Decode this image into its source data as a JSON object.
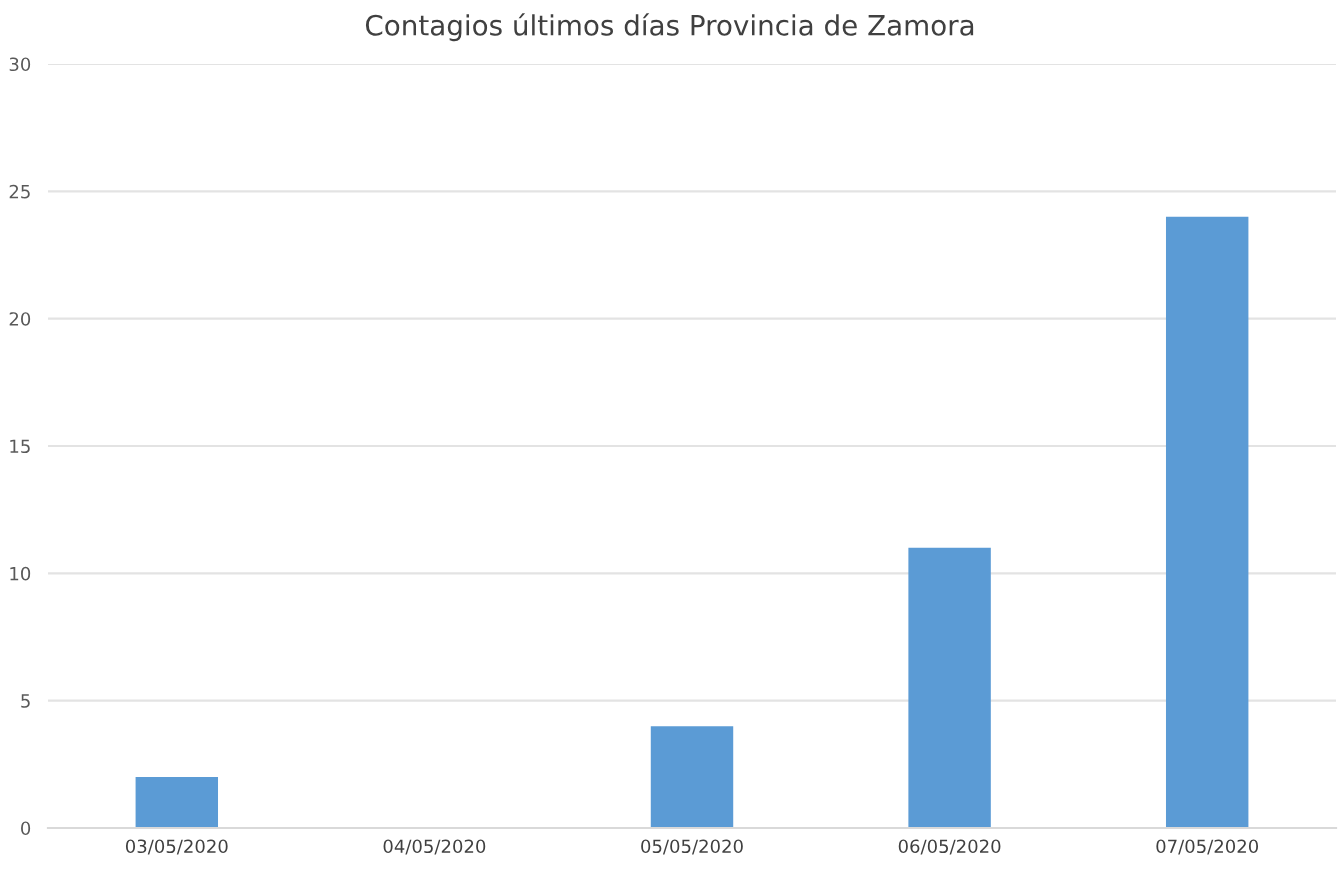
{
  "chart_data": {
    "type": "bar",
    "title": "Contagios últimos días Provincia de Zamora",
    "categories": [
      "03/05/2020",
      "04/05/2020",
      "05/05/2020",
      "06/05/2020",
      "07/05/2020"
    ],
    "values": [
      2,
      0,
      4,
      11,
      24
    ],
    "color": "#5b9bd5",
    "ylim": [
      0,
      30
    ],
    "yticks": [
      0,
      5,
      10,
      15,
      20,
      25,
      30
    ],
    "grid": "y",
    "legend": false
  }
}
